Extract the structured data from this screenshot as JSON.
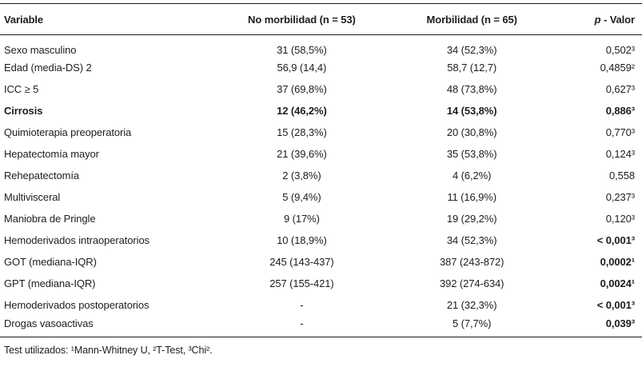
{
  "page": {
    "background": "#ffffff",
    "text_color": "#1d1d1b",
    "rule_color": "#1d1d1b"
  },
  "table": {
    "columns": [
      {
        "id": "variable",
        "label": "Variable",
        "align": "left"
      },
      {
        "id": "no_morbilidad",
        "label": "No morbilidad (n = 53)",
        "align": "center"
      },
      {
        "id": "morbilidad",
        "label": "Morbilidad (n = 65)",
        "align": "center"
      },
      {
        "id": "p_valor",
        "label_italic": "p",
        "label_rest": " - Valor",
        "align": "right"
      }
    ],
    "rows": [
      {
        "variable": "Sexo masculino",
        "no_morbilidad": "31 (58,5%)",
        "morbilidad": "34 (52,3%)",
        "p": "0,502³",
        "emphasis": "none"
      },
      {
        "variable": "Edad (media-DS) 2",
        "no_morbilidad": "56,9 (14,4)",
        "morbilidad": "58,7 (12,7)",
        "p": "0,4859²",
        "emphasis": "none"
      },
      {
        "variable": "ICC ≥ 5",
        "no_morbilidad": "37 (69,8%)",
        "morbilidad": "48 (73,8%)",
        "p": "0,627³",
        "emphasis": "none"
      },
      {
        "variable": "Cirrosis",
        "no_morbilidad": "12 (46,2%)",
        "morbilidad": "14 (53,8%)",
        "p": "0,886³",
        "emphasis": "row"
      },
      {
        "variable": "Quimioterapia preoperatoria",
        "no_morbilidad": "15 (28,3%)",
        "morbilidad": "20 (30,8%)",
        "p": "0,770³",
        "emphasis": "none"
      },
      {
        "variable": "Hepatectomía mayor",
        "no_morbilidad": "21 (39,6%)",
        "morbilidad": "35 (53,8%)",
        "p": "0,124³",
        "emphasis": "none"
      },
      {
        "variable": "Rehepatectomía",
        "no_morbilidad": "2 (3,8%)",
        "morbilidad": "4 (6,2%)",
        "p": "0,558",
        "emphasis": "none"
      },
      {
        "variable": "Multivisceral",
        "no_morbilidad": "5 (9,4%)",
        "morbilidad": "11 (16,9%)",
        "p": "0,237³",
        "emphasis": "none"
      },
      {
        "variable": "Maniobra de Pringle",
        "no_morbilidad": "9 (17%)",
        "morbilidad": "19 (29,2%)",
        "p": "0,120³",
        "emphasis": "none"
      },
      {
        "variable": "Hemoderivados intraoperatorios",
        "no_morbilidad": "10 (18,9%)",
        "morbilidad": "34 (52,3%)",
        "p": "< 0,001³",
        "emphasis": "p"
      },
      {
        "variable": "GOT (mediana-IQR)",
        "no_morbilidad": "245 (143-437)",
        "morbilidad": "387 (243-872)",
        "p": "0,0002¹",
        "emphasis": "p"
      },
      {
        "variable": "GPT (mediana-IQR)",
        "no_morbilidad": "257 (155-421)",
        "morbilidad": "392 (274-634)",
        "p": "0,0024¹",
        "emphasis": "p"
      },
      {
        "variable": "Hemoderivados postoperatorios",
        "no_morbilidad": "-",
        "morbilidad": "21 (32,3%)",
        "p": "< 0,001³",
        "emphasis": "p"
      },
      {
        "variable": "Drogas vasoactivas",
        "no_morbilidad": "-",
        "morbilidad": "5 (7,7%)",
        "p": "0,039³",
        "emphasis": "p"
      }
    ],
    "footnote": "Test utilizados: ¹Mann-Whitney U, ²T-Test, ³Chi²."
  }
}
